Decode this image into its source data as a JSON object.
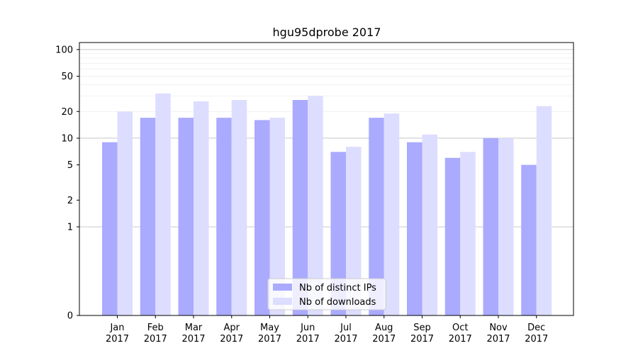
{
  "chart_data": {
    "type": "bar",
    "title": "hgu95dprobe 2017",
    "xlabel": "",
    "ylabel": "",
    "y_scale": "symlog",
    "ylim": [
      0,
      120
    ],
    "y_ticks": [
      0,
      1,
      2,
      5,
      10,
      20,
      50,
      100
    ],
    "y_tick_labels": [
      "0",
      "1",
      "2",
      "5",
      "10",
      "20",
      "50",
      "100"
    ],
    "grid": true,
    "legend_position": "bottom-center",
    "categories": [
      "Jan",
      "Feb",
      "Mar",
      "Apr",
      "May",
      "Jun",
      "Jul",
      "Aug",
      "Sep",
      "Oct",
      "Nov",
      "Dec"
    ],
    "category_years": [
      "2017",
      "2017",
      "2017",
      "2017",
      "2017",
      "2017",
      "2017",
      "2017",
      "2017",
      "2017",
      "2017",
      "2017"
    ],
    "series": [
      {
        "name": "Nb of distinct IPs",
        "color": "#aaaaff",
        "values": [
          9,
          17,
          17,
          17,
          16,
          27,
          7,
          17,
          9,
          6,
          10,
          5
        ]
      },
      {
        "name": "Nb of downloads",
        "color": "#ddddff",
        "values": [
          20,
          32,
          26,
          27,
          17,
          30,
          8,
          19,
          11,
          7,
          10,
          23
        ]
      }
    ]
  }
}
